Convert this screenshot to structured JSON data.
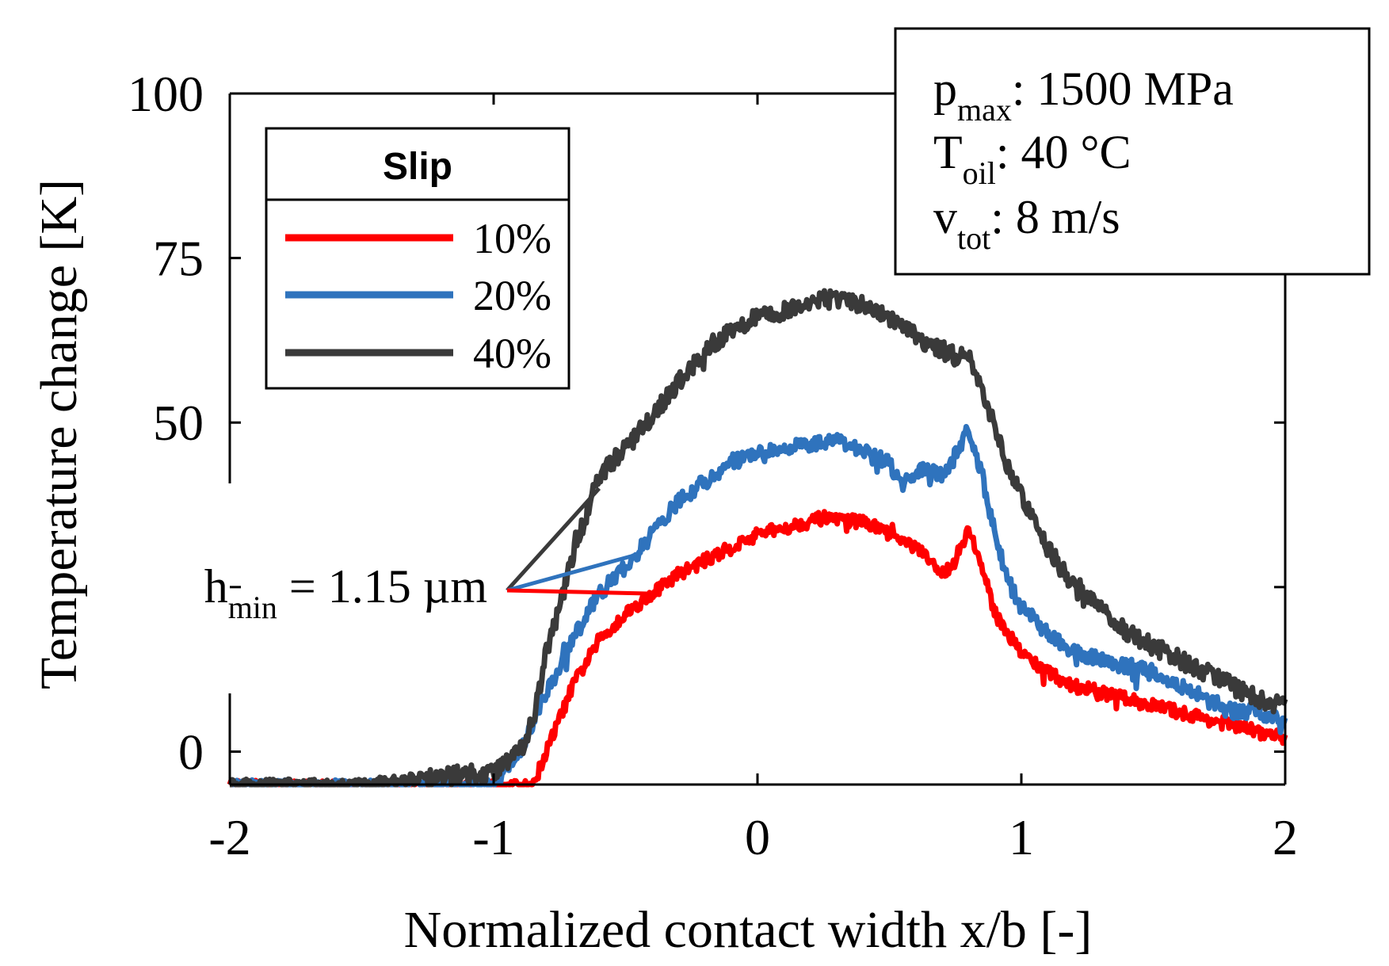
{
  "chart_data": {
    "type": "line",
    "xlabel": "Normalized contact width x/b [-]",
    "ylabel": "Temperature change [K]",
    "xlim": [
      -2,
      2
    ],
    "ylim": [
      -5,
      100
    ],
    "x_ticks": [
      -2,
      -1,
      0,
      1,
      2
    ],
    "x_tick_labels": [
      "-2",
      "-1",
      "0",
      "1",
      "2"
    ],
    "y_ticks": [
      0,
      25,
      50,
      75,
      100
    ],
    "y_tick_labels": [
      "0",
      "",
      "50",
      "75",
      "100"
    ],
    "grid": false,
    "legend": {
      "title": "Slip",
      "placement": "top-left"
    },
    "info_box": {
      "placement": "top-right",
      "lines": [
        {
          "main": "p",
          "sub": "max",
          "rest": ": 1500 MPa"
        },
        {
          "main": "T",
          "sub": "oil",
          "rest": ": 40 °C"
        },
        {
          "main": "v",
          "sub": "tot",
          "rest": ": 8 m/s"
        }
      ]
    },
    "annotation": {
      "main": "h",
      "sub": "min",
      "rest": " = 1.15 µm",
      "x": -0.93,
      "y": 30,
      "targets": [
        {
          "series": "40%",
          "x": -0.6,
          "y": 40
        },
        {
          "series": "20%",
          "x": -0.45,
          "y": 30
        },
        {
          "series": "10%",
          "x": -0.4,
          "y": 24
        }
      ]
    },
    "series": [
      {
        "name": "10%",
        "color": "#ff0000",
        "noise": 1.0,
        "x": [
          -2,
          -1.5,
          -1.0,
          -0.85,
          -0.8,
          -0.75,
          -0.7,
          -0.6,
          -0.5,
          -0.4,
          -0.3,
          -0.2,
          -0.1,
          0,
          0.1,
          0.2,
          0.25,
          0.3,
          0.4,
          0.5,
          0.6,
          0.7,
          0.75,
          0.8,
          0.85,
          0.9,
          0.95,
          1.0,
          1.1,
          1.2,
          1.3,
          1.4,
          1.5,
          1.6,
          1.7,
          1.8,
          1.9,
          2.0
        ],
        "values": [
          -5,
          -5,
          -5,
          -5,
          0,
          5,
          10,
          17,
          21,
          24,
          27,
          29,
          31,
          33,
          34,
          35,
          35.5,
          35,
          35,
          33,
          31,
          27,
          29,
          34,
          28,
          21,
          18,
          15,
          12,
          10,
          9,
          8,
          7,
          6,
          5,
          4,
          3,
          2
        ]
      },
      {
        "name": "20%",
        "color": "#2f73bd",
        "noise": 1.2,
        "x": [
          -2,
          -1.5,
          -1.0,
          -0.95,
          -0.9,
          -0.8,
          -0.7,
          -0.6,
          -0.5,
          -0.4,
          -0.3,
          -0.2,
          -0.1,
          0,
          0.1,
          0.2,
          0.3,
          0.4,
          0.5,
          0.55,
          0.6,
          0.7,
          0.75,
          0.8,
          0.85,
          0.9,
          0.95,
          1.0,
          1.1,
          1.2,
          1.3,
          1.4,
          1.5,
          1.6,
          1.7,
          1.8,
          1.9,
          2.0
        ],
        "values": [
          -5,
          -5,
          -5,
          -3,
          0,
          9,
          17,
          24,
          28,
          33,
          38,
          41,
          44,
          45,
          46,
          46.5,
          47,
          46,
          44,
          40,
          43,
          42,
          45,
          49,
          42,
          33,
          26,
          22,
          18,
          15,
          14,
          13,
          12,
          10,
          8,
          6,
          6,
          5
        ]
      },
      {
        "name": "40%",
        "color": "#3a3a3a",
        "noise": 1.4,
        "x": [
          -2,
          -1.5,
          -1.0,
          -0.9,
          -0.85,
          -0.8,
          -0.75,
          -0.7,
          -0.6,
          -0.5,
          -0.4,
          -0.3,
          -0.2,
          -0.1,
          0,
          0.1,
          0.2,
          0.3,
          0.4,
          0.5,
          0.6,
          0.7,
          0.75,
          0.8,
          0.85,
          0.9,
          0.95,
          1.0,
          1.1,
          1.2,
          1.3,
          1.4,
          1.5,
          1.6,
          1.7,
          1.8,
          1.9,
          2.0
        ],
        "values": [
          -5,
          -5,
          -3,
          0,
          5,
          15,
          22,
          30,
          42,
          46,
          51,
          56,
          61,
          64,
          66,
          67,
          68,
          69,
          68,
          66,
          63,
          61,
          60,
          61,
          55,
          49,
          43,
          39,
          31,
          25,
          22,
          18,
          16,
          14,
          12,
          10,
          8,
          7
        ]
      }
    ]
  }
}
